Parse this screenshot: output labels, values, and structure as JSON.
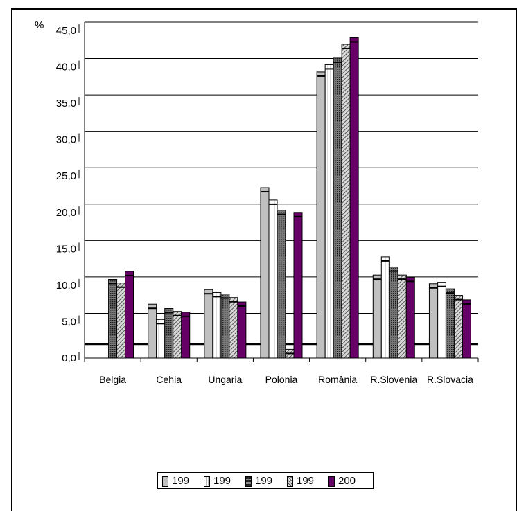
{
  "chart_data": {
    "type": "bar",
    "ylabel": "%",
    "categories": [
      "Belgia",
      "Cehia",
      "Ungaria",
      "Polonia",
      "România",
      "R.Slovenia",
      "R.Slovacia"
    ],
    "y_ticks": [
      "0,0",
      "5,0",
      "10,0",
      "15,0",
      "20,0",
      "25,0",
      "30,0",
      "35,0",
      "40,0",
      "45,0"
    ],
    "ylim": [
      0,
      45
    ],
    "grid": true,
    "legend_position": "bottom",
    "series": [
      {
        "name": "199",
        "color": "#c0c0c0",
        "pattern": "solid",
        "values": [
          null,
          7.4,
          9.4,
          23.4,
          39.3,
          11.4,
          10.2
        ]
      },
      {
        "name": "199",
        "color": "#ffffff",
        "pattern": "lines",
        "values": [
          null,
          5.3,
          9.0,
          21.7,
          40.3,
          13.9,
          10.4
        ]
      },
      {
        "name": "199",
        "color": "#555555",
        "pattern": "dots",
        "values": [
          10.8,
          6.8,
          8.8,
          20.3,
          41.2,
          12.5,
          9.5
        ]
      },
      {
        "name": "199",
        "color": "#b0b0b0",
        "pattern": "hatch",
        "values": [
          10.3,
          6.4,
          8.3,
          1.2,
          43.1,
          11.4,
          8.6
        ]
      },
      {
        "name": "200",
        "color": "#660066",
        "pattern": "solid",
        "values": [
          11.9,
          6.3,
          7.7,
          20.0,
          44.0,
          11.1,
          8.0
        ]
      }
    ]
  }
}
